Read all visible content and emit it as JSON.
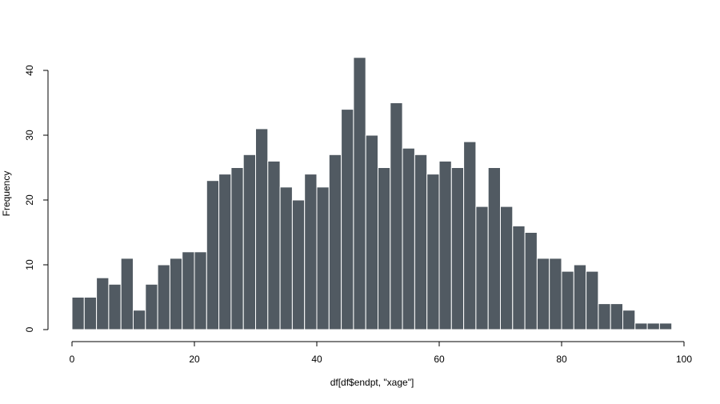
{
  "chart_data": {
    "type": "bar",
    "title": "",
    "xlabel": "df[df$endpt, \"xage\"]",
    "ylabel": "Frequency",
    "xlim": [
      0,
      100
    ],
    "ylim": [
      0,
      40
    ],
    "x_ticks": [
      0,
      20,
      40,
      60,
      80,
      100
    ],
    "y_ticks": [
      0,
      10,
      20,
      30,
      40
    ],
    "bin_width": 2,
    "bin_starts": [
      0,
      2,
      4,
      6,
      8,
      10,
      12,
      14,
      16,
      18,
      20,
      22,
      24,
      26,
      28,
      30,
      32,
      34,
      36,
      38,
      40,
      42,
      44,
      46,
      48,
      50,
      52,
      54,
      56,
      58,
      60,
      62,
      64,
      66,
      68,
      70,
      72,
      74,
      76,
      78,
      80,
      82,
      84,
      86,
      88,
      90,
      92,
      94,
      96
    ],
    "values": [
      5,
      5,
      8,
      7,
      11,
      3,
      7,
      10,
      11,
      12,
      12,
      23,
      24,
      25,
      27,
      31,
      26,
      22,
      20,
      24,
      22,
      27,
      34,
      42,
      30,
      25,
      35,
      28,
      27,
      24,
      26,
      25,
      29,
      19,
      25,
      19,
      16,
      15,
      11,
      11,
      9,
      10,
      9,
      4,
      4,
      3,
      1,
      1,
      1
    ],
    "bar_color": "#515a62",
    "bar_border_color": "#ffffff",
    "grid": false,
    "legend": "none"
  }
}
